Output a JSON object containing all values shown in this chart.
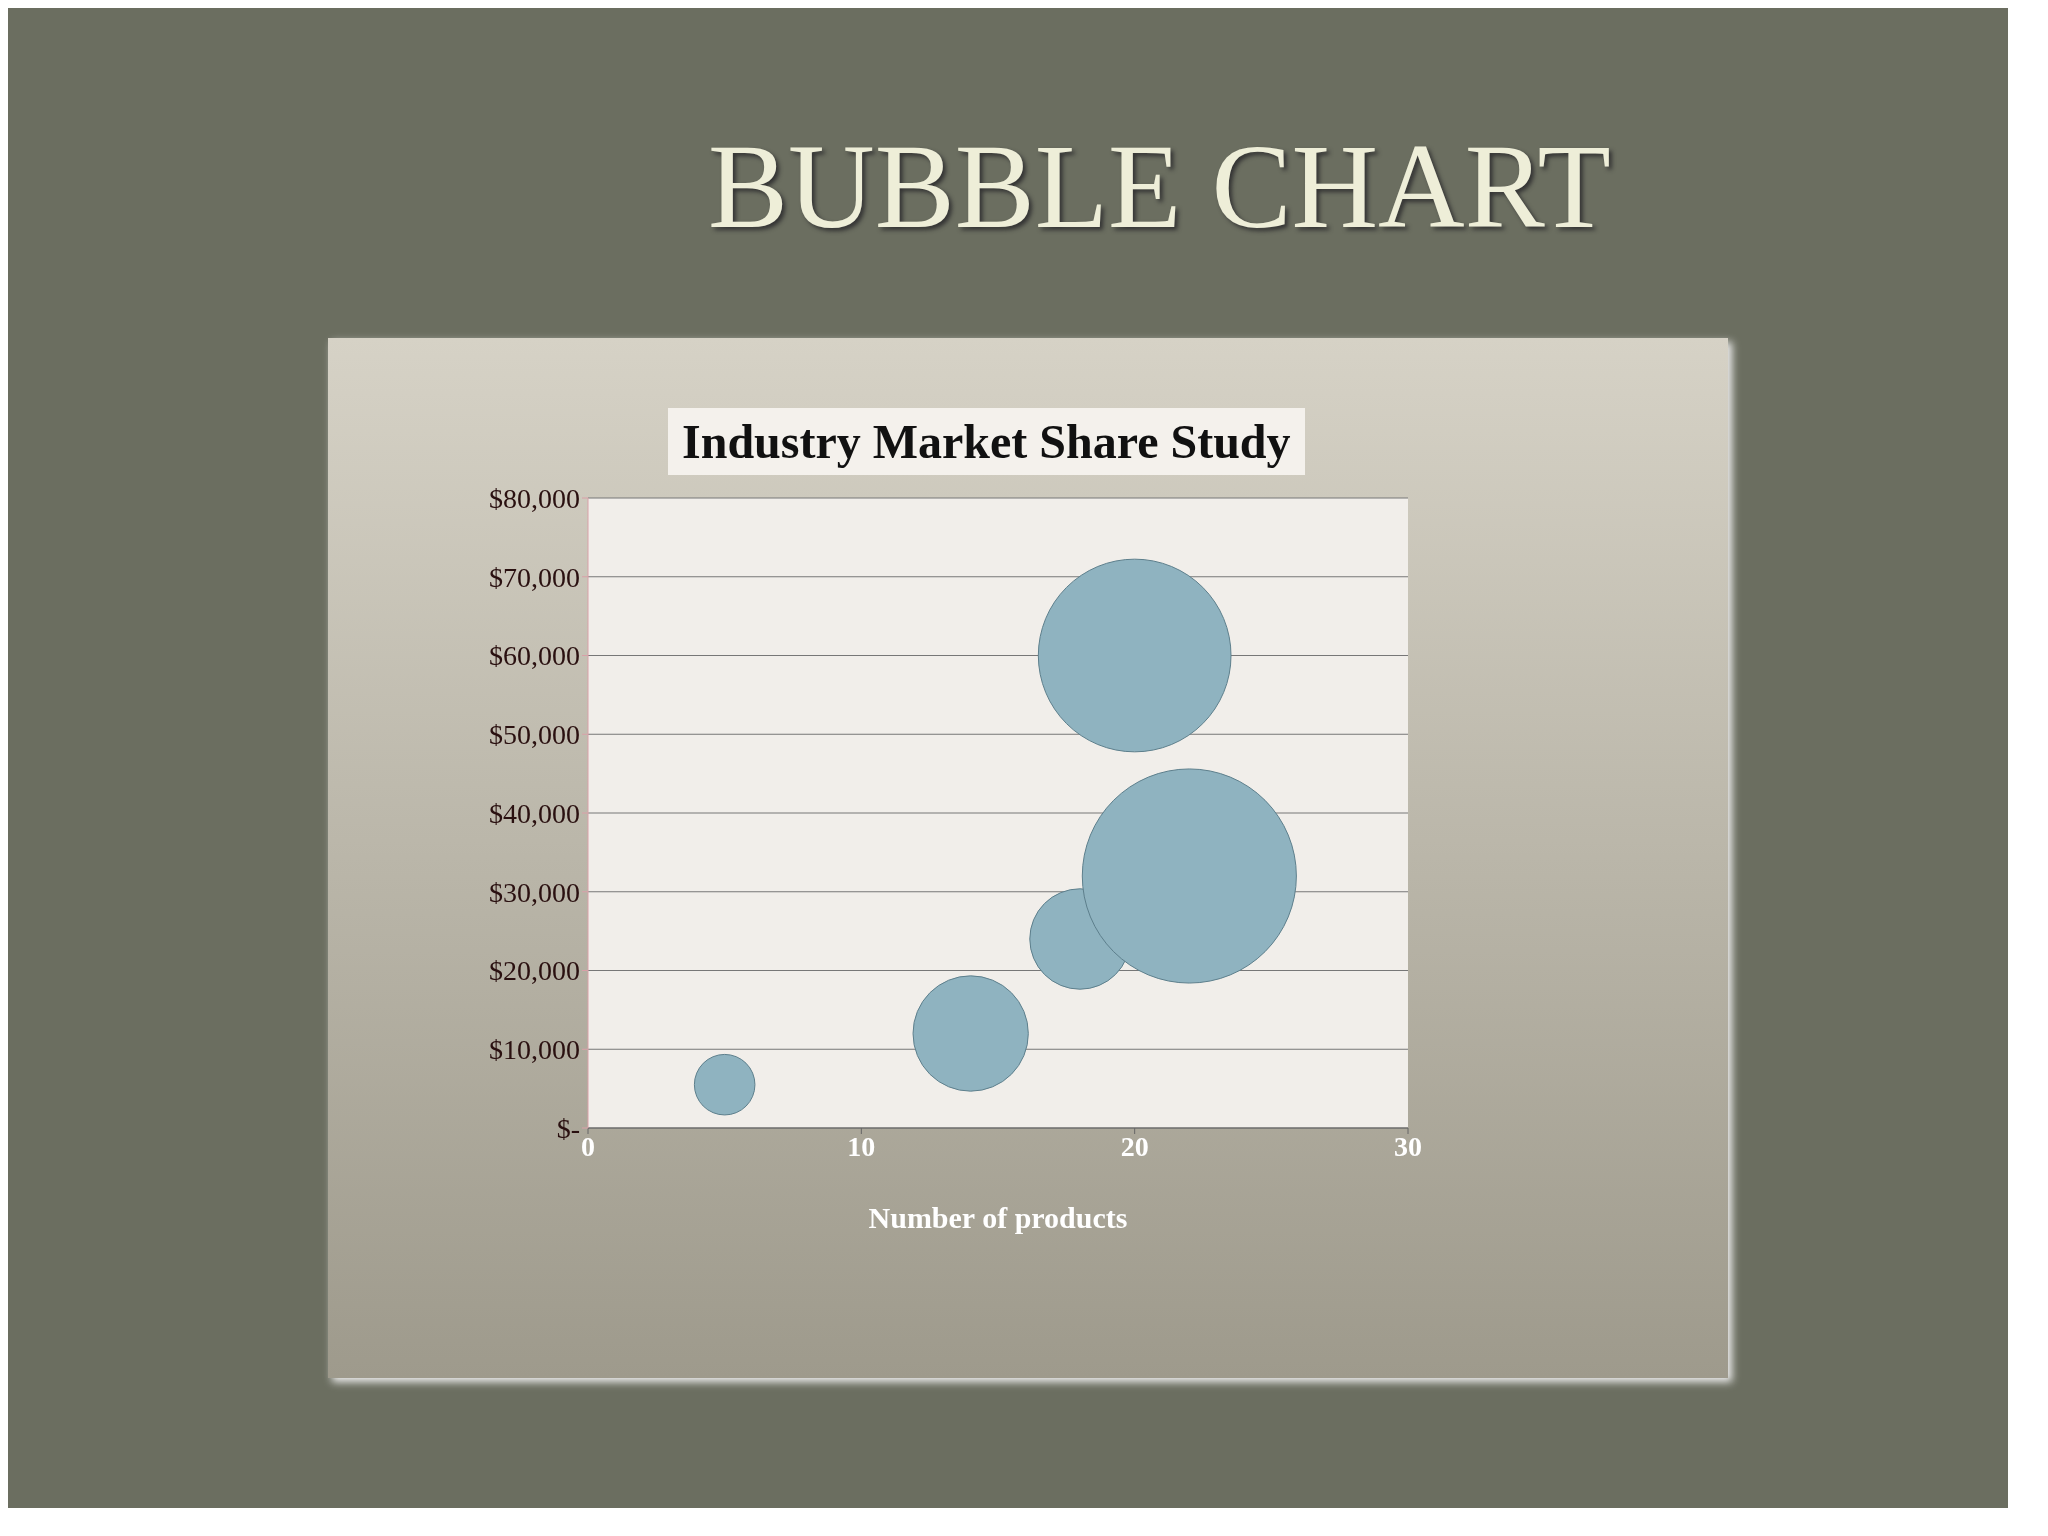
{
  "chart_data": {
    "type": "bubble",
    "title": "BUBBLE CHART",
    "subtitle": "Industry Market Share Study",
    "xlabel": "Number of products",
    "x": [
      5,
      14,
      18,
      20,
      22
    ],
    "values": [
      5500,
      12000,
      24000,
      60000,
      32000
    ],
    "sizes": [
      0.08,
      0.29,
      0.22,
      0.81,
      1
    ],
    "color": "#8fb3c0",
    "xlim": [
      0,
      30
    ],
    "xticks": [
      0,
      10,
      20,
      30
    ],
    "ylim": [
      0,
      80000
    ],
    "yticks": [
      {
        "value": 0,
        "label": "$-"
      },
      {
        "value": 10000,
        "label": "$10,000"
      },
      {
        "value": 20000,
        "label": "$20,000"
      },
      {
        "value": 30000,
        "label": "$30,000"
      },
      {
        "value": 40000,
        "label": "$40,000"
      },
      {
        "value": 50000,
        "label": "$50,000"
      },
      {
        "value": 60000,
        "label": "$60,000"
      },
      {
        "value": 70000,
        "label": "$70,000"
      },
      {
        "value": 80000,
        "label": "$80,000"
      }
    ],
    "grid": "y"
  }
}
